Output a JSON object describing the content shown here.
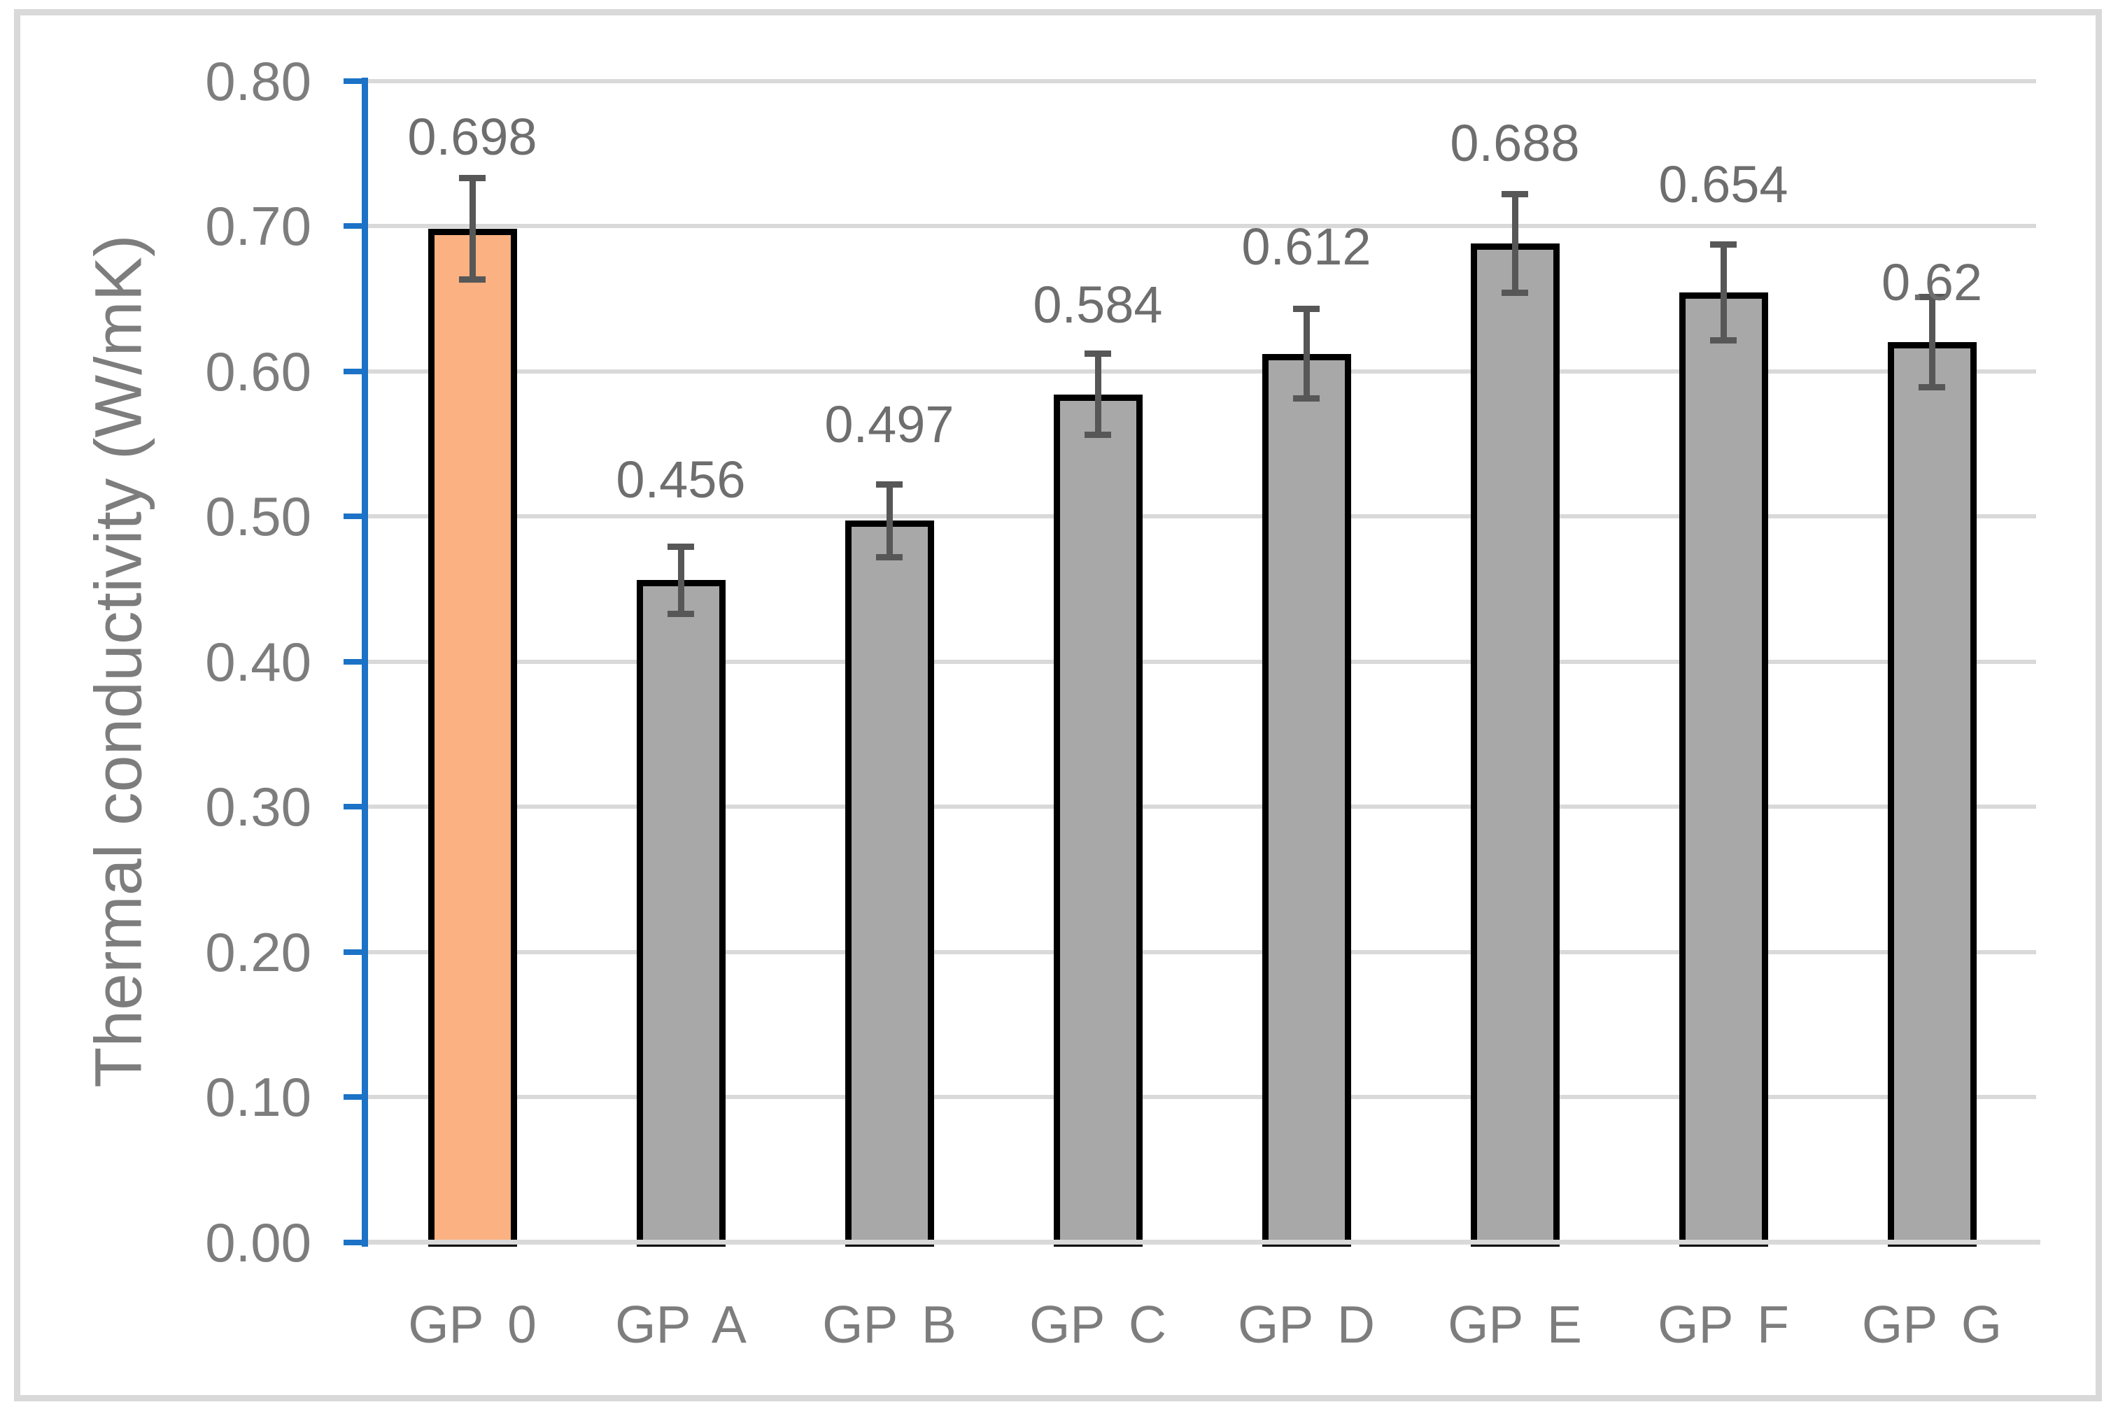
{
  "chart_data": {
    "type": "bar",
    "title": "",
    "xlabel": "",
    "ylabel": "Thermal conductivity (W/mK)",
    "categories": [
      "GP 0",
      "GP A",
      "GP B",
      "GP C",
      "GP D",
      "GP E",
      "GP F",
      "GP G"
    ],
    "values": [
      0.698,
      0.456,
      0.497,
      0.584,
      0.612,
      0.688,
      0.654,
      0.62
    ],
    "value_labels": [
      "0.698",
      "0.456",
      "0.497",
      "0.584",
      "0.612",
      "0.688",
      "0.654",
      "0.62"
    ],
    "error_bars": [
      0.035,
      0.023,
      0.025,
      0.028,
      0.031,
      0.034,
      0.033,
      0.031
    ],
    "highlight_index": 0,
    "ylim": [
      0,
      0.8
    ],
    "ytick_step": 0.1,
    "ytick_labels": [
      "0.00",
      "0.10",
      "0.20",
      "0.30",
      "0.40",
      "0.50",
      "0.60",
      "0.70",
      "0.80"
    ],
    "grid": true,
    "legend": "none",
    "colors": {
      "bar_highlight_fill": "#FBB181",
      "bar_default_fill": "#A8A8A8",
      "bar_outline": "#000000",
      "error_bar": "#575757",
      "axis_line_blue": "#1B72C6",
      "gridline_gray": "#D9D9D9",
      "tick_text_gray": "#7D7D7D",
      "data_label_gray": "#6E6E6E",
      "figure_border_gray": "#D9D9D9",
      "background": "#FFFFFF"
    }
  }
}
